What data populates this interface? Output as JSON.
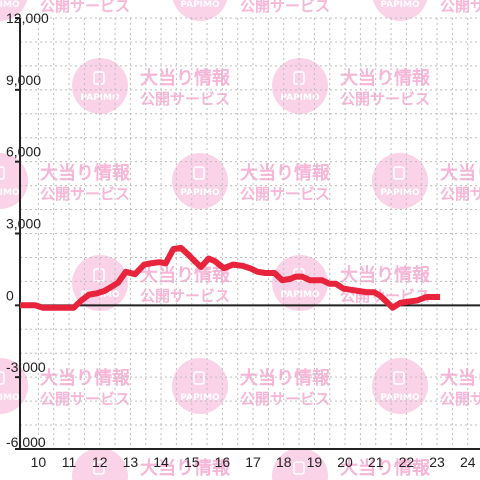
{
  "watermark": {
    "text_main": "大当り情報",
    "text_sub": "公開サービス",
    "logo_text": "PAPIMO",
    "color": "#f7b6d8"
  },
  "chart_data": {
    "type": "line",
    "x_ticks": [
      "10",
      "11",
      "12",
      "13",
      "14",
      "15",
      "16",
      "17",
      "18",
      "19",
      "20",
      "21",
      "22",
      "23",
      "24"
    ],
    "y_ticks": [
      "12,000",
      "9,000",
      "6,000",
      "3,000",
      "0",
      "-3,000",
      "-6,000"
    ],
    "xlim": [
      9.4,
      24.4
    ],
    "ylim": [
      -6000,
      12000
    ],
    "grid": true,
    "line_color": "#e8233c",
    "x": [
      9.4,
      9.9,
      10.15,
      10.6,
      10.85,
      11.15,
      11.4,
      11.65,
      11.9,
      12.15,
      12.35,
      12.6,
      12.85,
      13.15,
      13.45,
      13.65,
      13.95,
      14.15,
      14.4,
      14.65,
      14.9,
      15.05,
      15.3,
      15.55,
      15.75,
      16.05,
      16.35,
      16.65,
      16.9,
      17.15,
      17.4,
      17.7,
      17.95,
      18.2,
      18.4,
      18.6,
      18.85,
      19.05,
      19.25,
      19.5,
      19.7,
      19.95,
      20.2,
      20.45,
      20.7,
      20.95,
      21.15,
      21.35,
      21.55,
      21.8,
      22.05,
      22.35,
      22.65,
      22.95,
      23.1
    ],
    "y": [
      0,
      0,
      -100,
      -100,
      -100,
      -100,
      200,
      450,
      500,
      600,
      750,
      950,
      1400,
      1300,
      1700,
      1750,
      1800,
      1750,
      2350,
      2400,
      2100,
      1900,
      1600,
      1950,
      1850,
      1550,
      1700,
      1650,
      1550,
      1400,
      1350,
      1350,
      1050,
      1100,
      1200,
      1200,
      1050,
      1050,
      1050,
      900,
      900,
      700,
      650,
      600,
      550,
      550,
      400,
      150,
      -100,
      100,
      150,
      200,
      350,
      350,
      350
    ]
  }
}
